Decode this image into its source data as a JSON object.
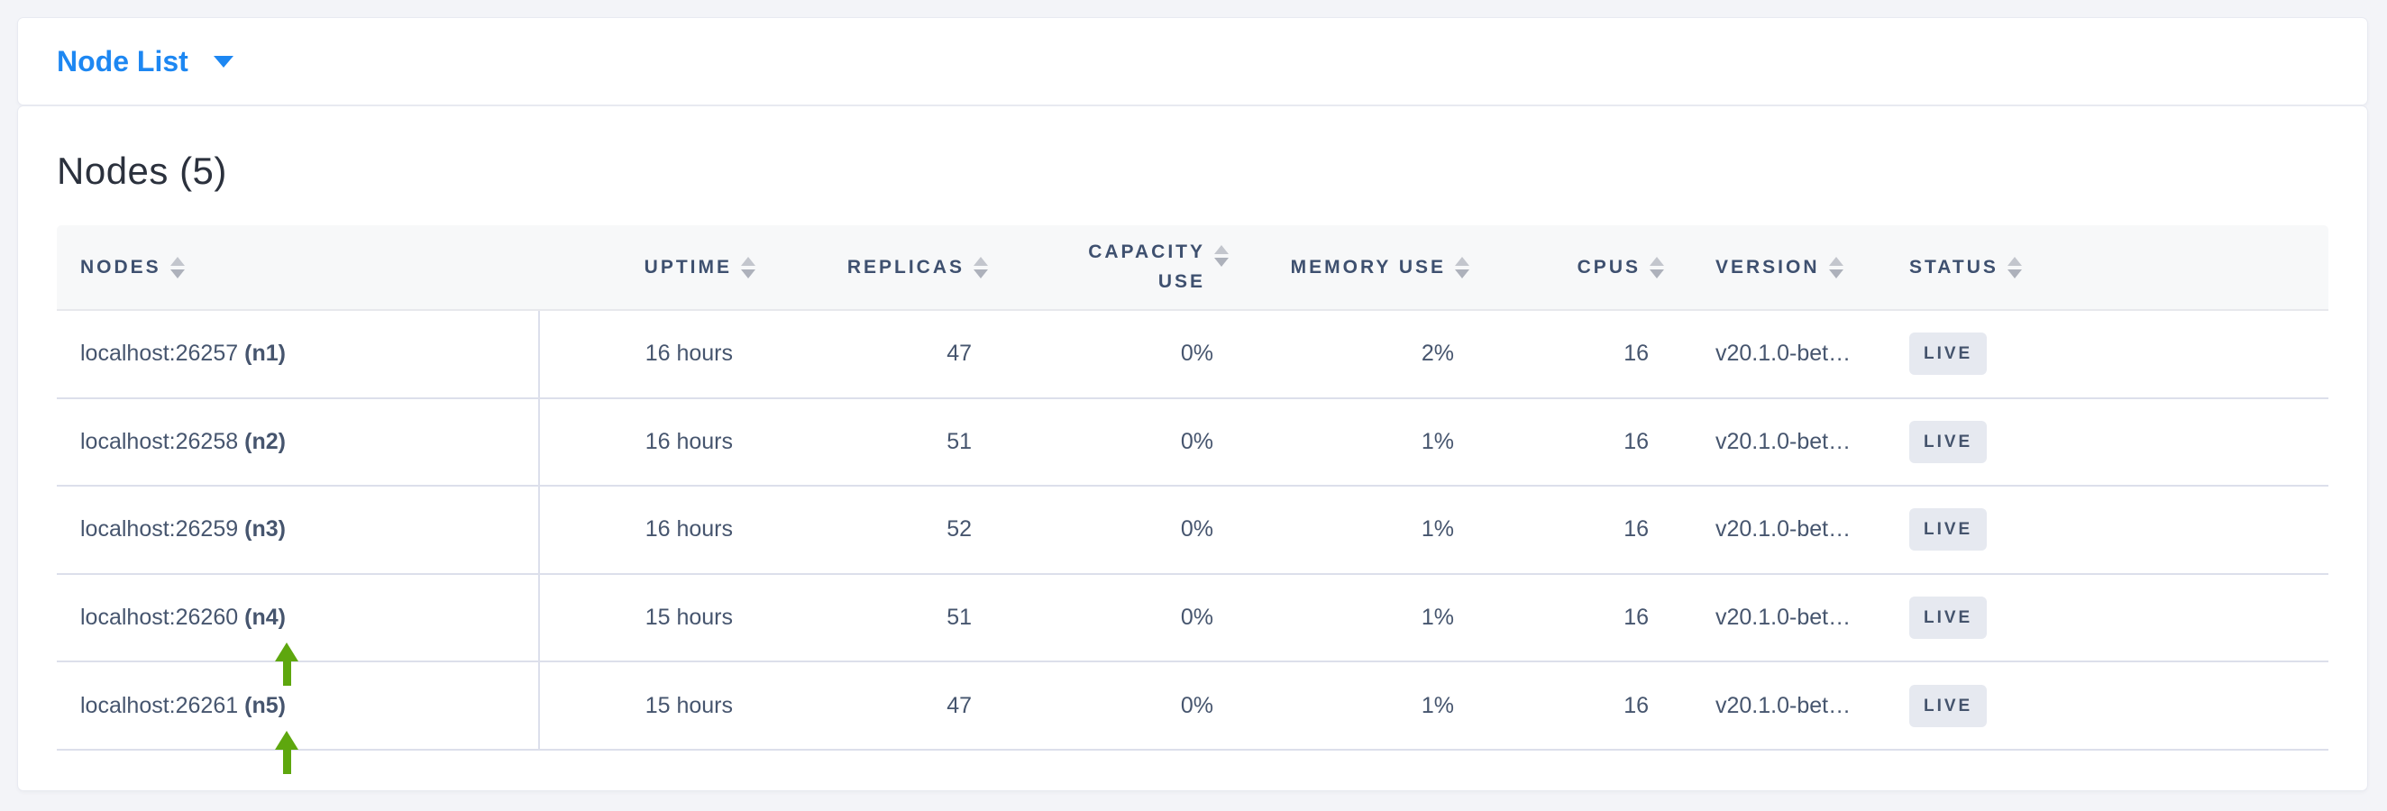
{
  "colors": {
    "page_background": "#f3f4f8",
    "accent_blue": "#1d87f2",
    "annotation_green": "#5ea70e",
    "badge_background": "#e6e9f0",
    "text_slate": "#46556e"
  },
  "topbar": {
    "dropdown_label": "Node List"
  },
  "panel": {
    "title": "Nodes (5)"
  },
  "table": {
    "headers": {
      "nodes": "NODES",
      "uptime": "UPTIME",
      "replicas": "REPLICAS",
      "capacity_use": "CAPACITY USE",
      "memory_use": "MEMORY USE",
      "cpus": "CPUS",
      "version": "VERSION",
      "status": "STATUS"
    },
    "rows": [
      {
        "address": "localhost:26257",
        "node_id": "(n1)",
        "uptime": "16 hours",
        "replicas": "47",
        "capacity_use": "0%",
        "memory_use": "2%",
        "cpus": "16",
        "version": "v20.1.0-bet…",
        "status": "LIVE"
      },
      {
        "address": "localhost:26258",
        "node_id": "(n2)",
        "uptime": "16 hours",
        "replicas": "51",
        "capacity_use": "0%",
        "memory_use": "1%",
        "cpus": "16",
        "version": "v20.1.0-bet…",
        "status": "LIVE"
      },
      {
        "address": "localhost:26259",
        "node_id": "(n3)",
        "uptime": "16 hours",
        "replicas": "52",
        "capacity_use": "0%",
        "memory_use": "1%",
        "cpus": "16",
        "version": "v20.1.0-bet…",
        "status": "LIVE"
      },
      {
        "address": "localhost:26260",
        "node_id": "(n4)",
        "uptime": "15 hours",
        "replicas": "51",
        "capacity_use": "0%",
        "memory_use": "1%",
        "cpus": "16",
        "version": "v20.1.0-bet…",
        "status": "LIVE"
      },
      {
        "address": "localhost:26261",
        "node_id": "(n5)",
        "uptime": "15 hours",
        "replicas": "47",
        "capacity_use": "0%",
        "memory_use": "1%",
        "cpus": "16",
        "version": "v20.1.0-bet…",
        "status": "LIVE"
      }
    ]
  }
}
